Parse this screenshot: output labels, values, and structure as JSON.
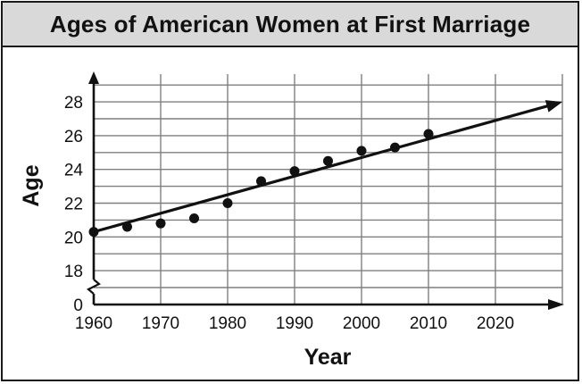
{
  "chart_data": {
    "type": "scatter",
    "title": "Ages of American Women at First Marriage",
    "xlabel": "Year",
    "ylabel": "Age",
    "x_ticks": [
      "1960",
      "1970",
      "1980",
      "1990",
      "2000",
      "2010",
      "2020"
    ],
    "y_ticks": [
      "0",
      "18",
      "20",
      "22",
      "24",
      "26",
      "28"
    ],
    "xlim": [
      1960,
      2030
    ],
    "ylim": [
      17,
      30
    ],
    "y_axis_break": true,
    "grid": true,
    "points": [
      {
        "x": 1960,
        "y": 20.3
      },
      {
        "x": 1965,
        "y": 20.6
      },
      {
        "x": 1970,
        "y": 20.8
      },
      {
        "x": 1975,
        "y": 21.1
      },
      {
        "x": 1980,
        "y": 22.0
      },
      {
        "x": 1985,
        "y": 23.3
      },
      {
        "x": 1990,
        "y": 23.9
      },
      {
        "x": 1995,
        "y": 24.5
      },
      {
        "x": 2000,
        "y": 25.1
      },
      {
        "x": 2005,
        "y": 25.3
      },
      {
        "x": 2010,
        "y": 26.1
      }
    ],
    "trend_line": {
      "x_start": 1960,
      "y_start": 20.3,
      "x_end": 2030,
      "y_end": 28.0
    }
  }
}
